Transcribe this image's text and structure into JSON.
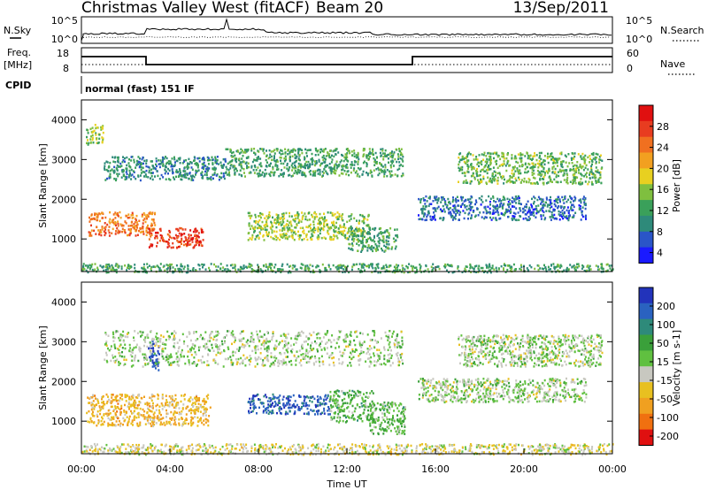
{
  "header": {
    "station": "Christmas Valley West (fitACF)",
    "beam": "Beam 20",
    "date": "13/Sep/2011"
  },
  "strip": {
    "nsky_label": "N.Sky",
    "nsky_ticks": [
      "10^5",
      "10^0"
    ],
    "nsearch_label": "N.Search",
    "nsearch_ticks": [
      "10^5",
      "10^0"
    ],
    "freq_label": "Freq.",
    "freq_unit": "[MHz]",
    "freq_ticks": [
      "18",
      "8"
    ],
    "nave_label": "Nave",
    "nave_ticks": [
      "60",
      "0"
    ],
    "cpid_label": "CPID",
    "cpid_value": "normal (fast) 151 IF"
  },
  "power_panel": {
    "ylabel": "Slant Range [km]",
    "yticks": [
      "4000",
      "3000",
      "2000",
      "1000"
    ],
    "colorbar_label": "Power [dB]",
    "colorbar_ticks": [
      "28",
      "24",
      "20",
      "16",
      "12",
      "8",
      "4"
    ],
    "colors": [
      "#1a1aff",
      "#2a55c8",
      "#2e8a7a",
      "#3aa05a",
      "#7fbf3f",
      "#e8d020",
      "#f2a020",
      "#f07020",
      "#e83c20",
      "#e01010"
    ]
  },
  "velocity_panel": {
    "ylabel": "Slant Range [km]",
    "yticks": [
      "4000",
      "3000",
      "2000",
      "1000"
    ],
    "colorbar_label": "Velocity [m s-1]",
    "colorbar_ticks": [
      "200",
      "100",
      "50",
      "15",
      "-15",
      "-50",
      "-100",
      "-200"
    ],
    "colors": [
      "#2233bb",
      "#2a62c0",
      "#2e8a7a",
      "#3aa03a",
      "#60c040",
      "#c8c8c0",
      "#e8c020",
      "#f0a020",
      "#f07010",
      "#e01010"
    ]
  },
  "xaxis": {
    "label": "Time UT",
    "ticks": [
      "00:00",
      "04:00",
      "08:00",
      "12:00",
      "16:00",
      "20:00",
      "00:00"
    ]
  },
  "chart_data": [
    {
      "type": "heatmap",
      "title": "Power",
      "xlabel": "Time UT",
      "ylabel": "Slant Range [km]",
      "xlim": [
        0,
        24
      ],
      "ylim": [
        180,
        4500
      ],
      "colorbar": {
        "label": "Power [dB]",
        "range": [
          0,
          30
        ]
      },
      "regions": [
        {
          "t": [
            0.2,
            1.0
          ],
          "r": [
            3400,
            3900
          ],
          "value": 14
        },
        {
          "t": [
            0.3,
            3.3
          ],
          "r": [
            1100,
            1700
          ],
          "value": 22
        },
        {
          "t": [
            3.0,
            5.5
          ],
          "r": [
            800,
            1300
          ],
          "value": 26
        },
        {
          "t": [
            1.0,
            6.5
          ],
          "r": [
            2500,
            3100
          ],
          "value": 8
        },
        {
          "t": [
            6.5,
            14.5
          ],
          "r": [
            2600,
            3300
          ],
          "value": 10
        },
        {
          "t": [
            7.5,
            13.0
          ],
          "r": [
            1000,
            1700
          ],
          "value": 14
        },
        {
          "t": [
            12.0,
            14.3
          ],
          "r": [
            700,
            1300
          ],
          "value": 10
        },
        {
          "t": [
            15.2,
            22.8
          ],
          "r": [
            1500,
            2100
          ],
          "value": 6
        },
        {
          "t": [
            17.0,
            23.5
          ],
          "r": [
            2400,
            3200
          ],
          "value": 12
        },
        {
          "t": [
            0.0,
            24.0
          ],
          "r": [
            180,
            400
          ],
          "value": 10
        }
      ]
    },
    {
      "type": "heatmap",
      "title": "Velocity",
      "xlabel": "Time UT",
      "ylabel": "Slant Range [km]",
      "xlim": [
        0,
        24
      ],
      "ylim": [
        180,
        4500
      ],
      "colorbar": {
        "label": "Velocity [m s-1]",
        "range": [
          -250,
          250
        ]
      },
      "regions": [
        {
          "t": [
            0.2,
            5.8
          ],
          "r": [
            900,
            1700
          ],
          "value": -90
        },
        {
          "t": [
            7.5,
            11.2
          ],
          "r": [
            1200,
            1700
          ],
          "value": 180
        },
        {
          "t": [
            11.2,
            13.2
          ],
          "r": [
            1000,
            1800
          ],
          "value": 45
        },
        {
          "t": [
            13.0,
            14.6
          ],
          "r": [
            700,
            1500
          ],
          "value": 40
        },
        {
          "t": [
            3.0,
            3.5
          ],
          "r": [
            2300,
            3100
          ],
          "value": 200
        },
        {
          "t": [
            1.0,
            14.5
          ],
          "r": [
            2400,
            3300
          ],
          "value": 0
        },
        {
          "t": [
            15.2,
            22.8
          ],
          "r": [
            1500,
            2100
          ],
          "value": 0
        },
        {
          "t": [
            17.0,
            23.5
          ],
          "r": [
            2400,
            3200
          ],
          "value": 0
        },
        {
          "t": [
            0.0,
            24.0
          ],
          "r": [
            180,
            450
          ],
          "value": -40
        }
      ]
    }
  ]
}
